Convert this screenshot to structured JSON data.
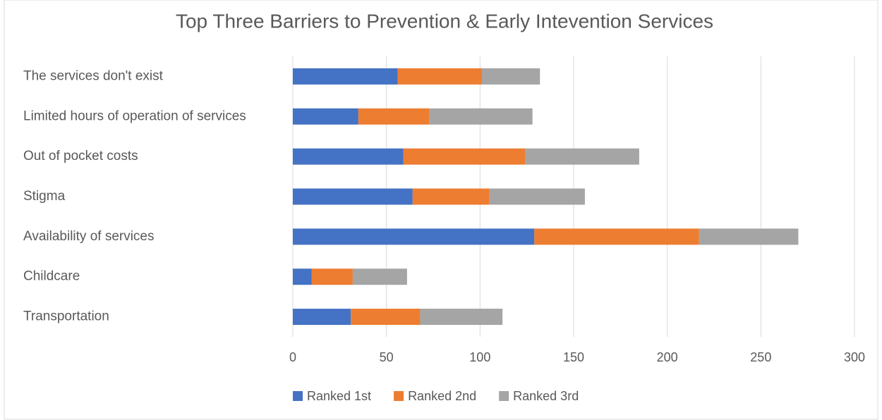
{
  "chart_data": {
    "type": "stacked-bar-horizontal",
    "title": "Top Three Barriers to Prevention & Early Intevention Services",
    "categories": [
      "The services don't exist",
      "Limited hours of operation of services",
      "Out of pocket costs",
      "Stigma",
      "Availability of services",
      "Childcare",
      "Transportation"
    ],
    "series": [
      {
        "name": "Ranked 1st",
        "color": "#4472c4",
        "values": [
          56,
          35,
          59,
          64,
          129,
          10,
          31
        ]
      },
      {
        "name": "Ranked 2nd",
        "color": "#ed7d31",
        "values": [
          45,
          38,
          65,
          41,
          88,
          22,
          37
        ]
      },
      {
        "name": "Ranked 3rd",
        "color": "#a5a5a5",
        "values": [
          31,
          55,
          61,
          51,
          53,
          29,
          44
        ]
      }
    ],
    "xlim": [
      0,
      300
    ],
    "xticks": [
      0,
      50,
      100,
      150,
      200,
      250,
      300
    ],
    "grid": true,
    "legend": "bottom"
  }
}
